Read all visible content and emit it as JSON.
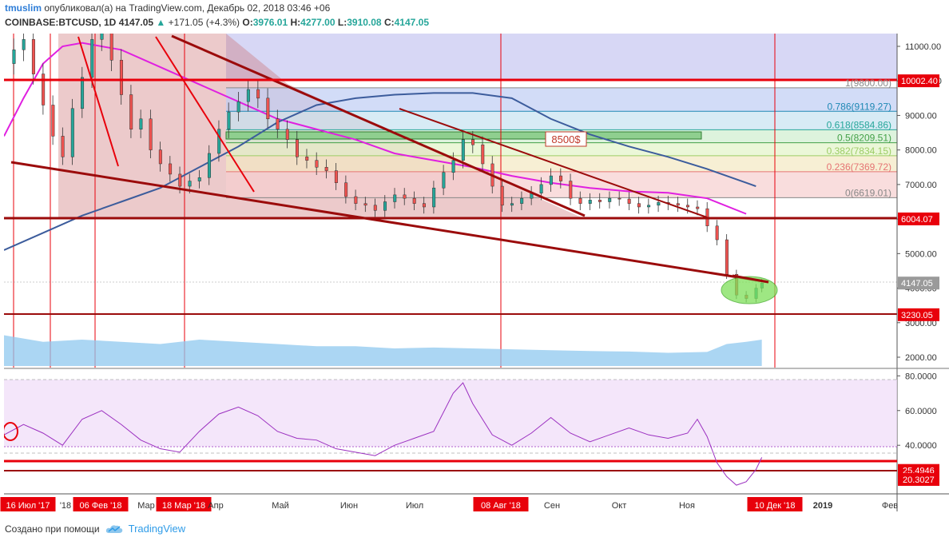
{
  "header": {
    "user": "tmuslim",
    "published": "опубликовал(а) на TradingView.com, Декабрь 02, 2018 03:46 +06",
    "symbol": "COINBASE:BTCUSD, 1D",
    "last": "4147.05",
    "change_arrow": "▲",
    "change": "+171.05 (+4.3%)",
    "o_label": "O:",
    "o": "3976.01",
    "h_label": "H:",
    "h": "4277.00",
    "l_label": "L:",
    "l": "3910.08",
    "c_label": "C:",
    "c": "4147.05"
  },
  "footer": {
    "created_with": "Создано при помощи",
    "brand": "TradingView",
    "brand_icon": "tradingview-cloud-icon"
  },
  "colors": {
    "red": "#e8000b",
    "darkred": "#9b0b0b",
    "magenta": "#e020e0",
    "ma_blue": "#3c5c9c",
    "rsi": "#9b30c0",
    "candle_up": "#26a69a",
    "candle_dn": "#ef5350"
  },
  "chart_data": {
    "type": "candlestick",
    "price_axis": {
      "ylim": [
        1700,
        11400
      ],
      "ticks": [
        "11000.00",
        "10000.00",
        "9000.00",
        "8000.00",
        "7000.00",
        "6000.00",
        "5000.00",
        "4000.00",
        "3000.00",
        "2000.00"
      ],
      "tick_values": [
        11000,
        10000,
        9000,
        8000,
        7000,
        6000,
        5000,
        4000,
        3000,
        2000
      ]
    },
    "price_labels": [
      {
        "text": "10002.40",
        "value": 10002.4,
        "style": "red"
      },
      {
        "text": "6004.07",
        "value": 6004.07,
        "style": "red"
      },
      {
        "text": "4147.05",
        "value": 4147.05,
        "style": "grey"
      },
      {
        "text": "3230.05",
        "value": 3230.05,
        "style": "red"
      }
    ],
    "fibonacci": [
      {
        "ratio": "1",
        "price": "9800.00",
        "text": "1(9800.00)"
      },
      {
        "ratio": "0.786",
        "price": "9119.27",
        "text": "0.786(9119.27)"
      },
      {
        "ratio": "0.618",
        "price": "8584.86",
        "text": "0.618(8584.86)"
      },
      {
        "ratio": "0.5",
        "price": "8209.51",
        "text": "0.5(8209.51)"
      },
      {
        "ratio": "0.382",
        "price": "7834.15",
        "text": "0.382(7834.15)"
      },
      {
        "ratio": "0.236",
        "price": "7369.72",
        "text": "0.236(7369.72)"
      },
      {
        "ratio": "0",
        "price": "6619.01",
        "text": "0(6619.01)"
      }
    ],
    "annotation": "8500$",
    "time_axis": {
      "labels": [
        "16 Июл '17",
        "'18",
        "06 Фев '18",
        "Мар",
        "18 Мар '18",
        "Апр",
        "Май",
        "Июн",
        "Июл",
        "08 Авг '18",
        "Сен",
        "Окт",
        "Ноя",
        "Д",
        "10 Дек '18",
        "2019",
        "Фев"
      ],
      "highlighted": [
        "16 Июл '17",
        "06 Фев '18",
        "18 Мар '18",
        "08 Авг '18",
        "10 Дек '18"
      ]
    },
    "rsi_axis": {
      "ticks": [
        "80.0000",
        "60.0000",
        "40.0000"
      ],
      "tick_values": [
        80,
        60,
        40
      ],
      "ylim": [
        12,
        82
      ],
      "levels": [
        {
          "text": "25.4946",
          "value": 25.4946
        },
        {
          "text": "20.3027",
          "value": 20.3027
        }
      ]
    },
    "price_series": [
      [
        0,
        10500
      ],
      [
        5,
        10900
      ],
      [
        10,
        11200
      ],
      [
        15,
        10200
      ],
      [
        20,
        9300
      ],
      [
        25,
        8400
      ],
      [
        30,
        7800
      ],
      [
        35,
        9200
      ],
      [
        40,
        10100
      ],
      [
        45,
        11200
      ],
      [
        50,
        11400
      ],
      [
        55,
        10600
      ],
      [
        60,
        9600
      ],
      [
        65,
        8600
      ],
      [
        70,
        8900
      ],
      [
        75,
        8000
      ],
      [
        80,
        7600
      ],
      [
        85,
        7300
      ],
      [
        90,
        6950
      ],
      [
        95,
        7100
      ],
      [
        100,
        7200
      ],
      [
        105,
        7900
      ],
      [
        110,
        8600
      ],
      [
        115,
        9100
      ],
      [
        120,
        9400
      ],
      [
        125,
        9750
      ],
      [
        130,
        9500
      ],
      [
        135,
        8900
      ],
      [
        140,
        8600
      ],
      [
        145,
        8300
      ],
      [
        150,
        7800
      ],
      [
        155,
        7700
      ],
      [
        160,
        7500
      ],
      [
        165,
        7400
      ],
      [
        170,
        7050
      ],
      [
        175,
        6650
      ],
      [
        180,
        6450
      ],
      [
        185,
        6400
      ],
      [
        190,
        6250
      ],
      [
        195,
        6500
      ],
      [
        200,
        6700
      ],
      [
        205,
        6600
      ],
      [
        210,
        6450
      ],
      [
        215,
        6350
      ],
      [
        220,
        6900
      ],
      [
        225,
        7350
      ],
      [
        230,
        7700
      ],
      [
        235,
        8300
      ],
      [
        240,
        8150
      ],
      [
        245,
        7600
      ],
      [
        250,
        6950
      ],
      [
        255,
        6400
      ],
      [
        260,
        6450
      ],
      [
        265,
        6600
      ],
      [
        270,
        6750
      ],
      [
        275,
        7000
      ],
      [
        280,
        7250
      ],
      [
        285,
        7100
      ],
      [
        290,
        6600
      ],
      [
        295,
        6450
      ],
      [
        300,
        6550
      ],
      [
        305,
        6500
      ],
      [
        310,
        6600
      ],
      [
        315,
        6580
      ],
      [
        320,
        6450
      ],
      [
        325,
        6350
      ],
      [
        330,
        6400
      ],
      [
        335,
        6480
      ],
      [
        340,
        6450
      ],
      [
        345,
        6400
      ],
      [
        350,
        6350
      ],
      [
        355,
        6300
      ],
      [
        360,
        5800
      ],
      [
        365,
        5400
      ],
      [
        370,
        4400
      ],
      [
        375,
        3800
      ],
      [
        380,
        3700
      ],
      [
        385,
        4000
      ],
      [
        388,
        4147
      ]
    ],
    "rsi_series": [
      [
        0,
        46
      ],
      [
        10,
        52
      ],
      [
        20,
        47
      ],
      [
        30,
        40
      ],
      [
        40,
        55
      ],
      [
        50,
        60
      ],
      [
        60,
        52
      ],
      [
        70,
        43
      ],
      [
        80,
        38
      ],
      [
        90,
        36
      ],
      [
        100,
        48
      ],
      [
        110,
        58
      ],
      [
        120,
        62
      ],
      [
        130,
        57
      ],
      [
        140,
        48
      ],
      [
        150,
        44
      ],
      [
        160,
        43
      ],
      [
        170,
        38
      ],
      [
        180,
        36
      ],
      [
        190,
        34
      ],
      [
        200,
        40
      ],
      [
        210,
        44
      ],
      [
        220,
        48
      ],
      [
        230,
        70
      ],
      [
        235,
        76
      ],
      [
        240,
        64
      ],
      [
        250,
        46
      ],
      [
        260,
        40
      ],
      [
        270,
        47
      ],
      [
        280,
        56
      ],
      [
        290,
        47
      ],
      [
        300,
        42
      ],
      [
        310,
        46
      ],
      [
        320,
        50
      ],
      [
        330,
        46
      ],
      [
        340,
        44
      ],
      [
        350,
        47
      ],
      [
        355,
        55
      ],
      [
        360,
        45
      ],
      [
        365,
        30
      ],
      [
        370,
        22
      ],
      [
        375,
        17
      ],
      [
        380,
        19
      ],
      [
        385,
        26
      ],
      [
        388,
        33
      ]
    ],
    "volume_series": [
      [
        0,
        0.7
      ],
      [
        20,
        0.55
      ],
      [
        40,
        0.6
      ],
      [
        60,
        0.55
      ],
      [
        80,
        0.5
      ],
      [
        100,
        0.6
      ],
      [
        120,
        0.55
      ],
      [
        140,
        0.5
      ],
      [
        160,
        0.45
      ],
      [
        180,
        0.45
      ],
      [
        200,
        0.4
      ],
      [
        220,
        0.42
      ],
      [
        240,
        0.4
      ],
      [
        260,
        0.38
      ],
      [
        280,
        0.36
      ],
      [
        300,
        0.34
      ],
      [
        320,
        0.33
      ],
      [
        340,
        0.3
      ],
      [
        360,
        0.32
      ],
      [
        370,
        0.5
      ],
      [
        380,
        0.55
      ],
      [
        388,
        0.6
      ]
    ],
    "ma_series": [
      {
        "name": "",
        "color": "magenta",
        "points": [
          [
            0,
            8400
          ],
          [
            10,
            9500
          ],
          [
            20,
            10500
          ],
          [
            30,
            11000
          ],
          [
            40,
            11100
          ],
          [
            60,
            10900
          ],
          [
            80,
            10400
          ],
          [
            100,
            9900
          ],
          [
            120,
            9400
          ],
          [
            140,
            8900
          ],
          [
            160,
            8600
          ],
          [
            180,
            8300
          ],
          [
            200,
            7900
          ],
          [
            220,
            7700
          ],
          [
            240,
            7500
          ],
          [
            260,
            7250
          ],
          [
            280,
            7050
          ],
          [
            300,
            6900
          ],
          [
            320,
            6800
          ],
          [
            340,
            6760
          ],
          [
            360,
            6600
          ],
          [
            380,
            6150
          ]
        ]
      },
      {
        "name": "",
        "color": "ma_blue",
        "points": [
          [
            0,
            5100
          ],
          [
            20,
            5600
          ],
          [
            40,
            6100
          ],
          [
            60,
            6500
          ],
          [
            80,
            6900
          ],
          [
            100,
            7500
          ],
          [
            120,
            8100
          ],
          [
            140,
            8800
          ],
          [
            160,
            9300
          ],
          [
            180,
            9500
          ],
          [
            200,
            9600
          ],
          [
            220,
            9650
          ],
          [
            240,
            9650
          ],
          [
            260,
            9500
          ],
          [
            280,
            8900
          ],
          [
            300,
            8450
          ],
          [
            320,
            8100
          ],
          [
            340,
            7800
          ],
          [
            360,
            7450
          ],
          [
            380,
            7050
          ],
          [
            385,
            6950
          ]
        ]
      }
    ]
  }
}
